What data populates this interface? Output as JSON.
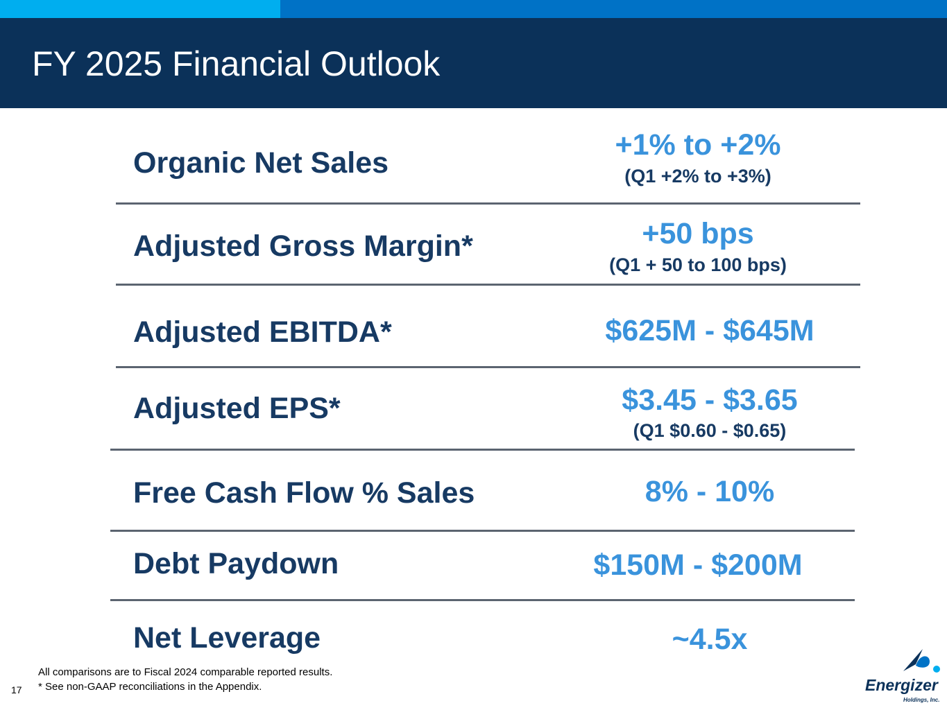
{
  "slide": {
    "title": "FY 2025 Financial Outlook",
    "page_number": "17",
    "colors": {
      "header_bg": "#0b3159",
      "topbar_light": "#00aeef",
      "topbar_dark": "#0072c6",
      "label_text": "#173a63",
      "value_text": "#3a93dc",
      "divider": "#5b6470"
    }
  },
  "outlook": [
    {
      "label": "Organic Net Sales",
      "value": "+1% to +2%",
      "sub": "(Q1 +2% to +3%)"
    },
    {
      "label": "Adjusted Gross Margin*",
      "value": "+50 bps",
      "sub": "(Q1 + 50 to 100 bps)"
    },
    {
      "label": "Adjusted EBITDA*",
      "value": "$625M - $645M"
    },
    {
      "label": "Adjusted EPS*",
      "value": "$3.45 - $3.65",
      "sub": "(Q1 $0.60 - $0.65)"
    },
    {
      "label": "Free Cash Flow % Sales",
      "value": "8% - 10%"
    },
    {
      "label": "Debt Paydown",
      "value": "$150M - $200M"
    },
    {
      "label": "Net Leverage",
      "value": "~4.5x"
    }
  ],
  "footnotes": [
    "All comparisons are to Fiscal 2024 comparable reported results.",
    "* See non-GAAP reconciliations in the Appendix."
  ],
  "logo": {
    "brand": "Energizer",
    "subtitle": "Holdings, Inc.",
    "icon": "energizer-swoosh-icon"
  }
}
